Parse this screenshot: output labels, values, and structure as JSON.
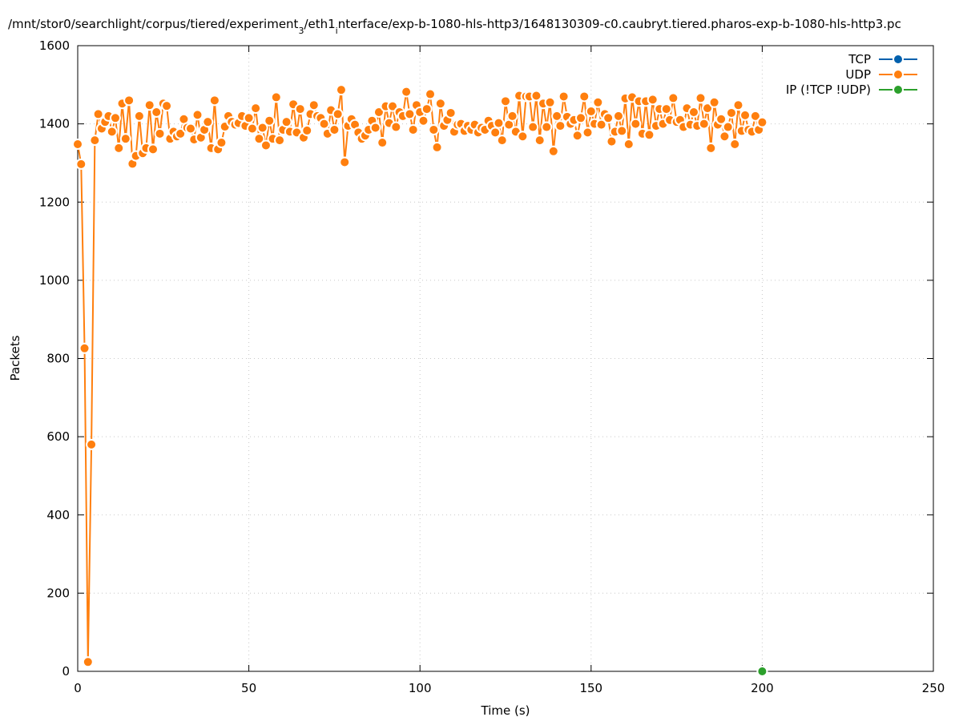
{
  "chart_data": {
    "type": "line",
    "title": [
      "/mnt/stor0/searchlight/corpus/tiered/experiment",
      "3",
      "/eth1",
      "i",
      "nterface/exp-b-1080-hls-http3/1648130309-c0.caubryt.tiered.pharos-exp-b-1080-hls-http3.pc"
    ],
    "x_label": "Time (s)",
    "y_label": "Packets",
    "xlim": [
      0,
      250
    ],
    "xticks": [
      0,
      50,
      100,
      150,
      200,
      250
    ],
    "ylim": [
      0,
      1600
    ],
    "yticks": [
      0,
      200,
      400,
      600,
      800,
      1000,
      1200,
      1400,
      1600
    ],
    "grid": true,
    "legend": "top-right",
    "series": [
      {
        "name": "TCP",
        "color": "#0060ad",
        "x": [
          200
        ],
        "values": [
          0
        ]
      },
      {
        "name": "UDP",
        "color": "#ff7f0e",
        "x": [
          0,
          1,
          2,
          3,
          4,
          5,
          6,
          7,
          8,
          9,
          10,
          11,
          12,
          13,
          14,
          15,
          16,
          17,
          18,
          19,
          20,
          21,
          22,
          23,
          24,
          25,
          26,
          27,
          28,
          29,
          30,
          31,
          32,
          33,
          34,
          35,
          36,
          37,
          38,
          39,
          40,
          41,
          42,
          43,
          44,
          45,
          46,
          47,
          48,
          49,
          50,
          51,
          52,
          53,
          54,
          55,
          56,
          57,
          58,
          59,
          60,
          61,
          62,
          63,
          64,
          65,
          66,
          67,
          68,
          69,
          70,
          71,
          72,
          73,
          74,
          75,
          76,
          77,
          78,
          79,
          80,
          81,
          82,
          83,
          84,
          85,
          86,
          87,
          88,
          89,
          90,
          91,
          92,
          93,
          94,
          95,
          96,
          97,
          98,
          99,
          100,
          101,
          102,
          103,
          104,
          105,
          106,
          107,
          108,
          109,
          110,
          111,
          112,
          113,
          114,
          115,
          116,
          117,
          118,
          119,
          120,
          121,
          122,
          123,
          124,
          125,
          126,
          127,
          128,
          129,
          130,
          131,
          132,
          133,
          134,
          135,
          136,
          137,
          138,
          139,
          140,
          141,
          142,
          143,
          144,
          145,
          146,
          147,
          148,
          149,
          150,
          151,
          152,
          153,
          154,
          155,
          156,
          157,
          158,
          159,
          160,
          161,
          162,
          163,
          164,
          165,
          166,
          167,
          168,
          169,
          170,
          171,
          172,
          173,
          174,
          175,
          176,
          177,
          178,
          179,
          180,
          181,
          182,
          183,
          184,
          185,
          186,
          187,
          188,
          189,
          190,
          191,
          192,
          193,
          194,
          195,
          196,
          197,
          198,
          199,
          200
        ],
        "values": [
          1348,
          1297,
          826,
          24,
          580,
          1358,
          1425,
          1388,
          1405,
          1420,
          1380,
          1415,
          1338,
          1452,
          1362,
          1460,
          1298,
          1318,
          1420,
          1325,
          1338,
          1448,
          1335,
          1430,
          1375,
          1452,
          1446,
          1362,
          1380,
          1368,
          1375,
          1412,
          1390,
          1388,
          1360,
          1423,
          1365,
          1385,
          1405,
          1338,
          1460,
          1335,
          1352,
          1393,
          1420,
          1405,
          1398,
          1402,
          1420,
          1395,
          1415,
          1388,
          1440,
          1362,
          1390,
          1345,
          1408,
          1362,
          1468,
          1358,
          1385,
          1405,
          1380,
          1450,
          1378,
          1438,
          1365,
          1383,
          1425,
          1448,
          1420,
          1415,
          1400,
          1375,
          1435,
          1385,
          1425,
          1487,
          1302,
          1395,
          1412,
          1398,
          1378,
          1362,
          1370,
          1385,
          1408,
          1390,
          1430,
          1352,
          1445,
          1402,
          1445,
          1392,
          1430,
          1420,
          1482,
          1425,
          1385,
          1448,
          1430,
          1408,
          1438,
          1476,
          1385,
          1340,
          1452,
          1395,
          1410,
          1428,
          1380,
          1398,
          1400,
          1382,
          1395,
          1385,
          1398,
          1378,
          1390,
          1385,
          1408,
          1395,
          1378,
          1402,
          1358,
          1458,
          1398,
          1420,
          1380,
          1472,
          1368,
          1470,
          1470,
          1392,
          1472,
          1358,
          1452,
          1392,
          1455,
          1330,
          1420,
          1395,
          1470,
          1418,
          1400,
          1410,
          1370,
          1415,
          1470,
          1378,
          1432,
          1400,
          1455,
          1398,
          1425,
          1415,
          1355,
          1380,
          1420,
          1382,
          1465,
          1348,
          1468,
          1400,
          1458,
          1375,
          1458,
          1372,
          1462,
          1395,
          1438,
          1400,
          1438,
          1410,
          1466,
          1405,
          1410,
          1392,
          1440,
          1398,
          1430,
          1395,
          1466,
          1400,
          1440,
          1338,
          1455,
          1398,
          1412,
          1368,
          1392,
          1428,
          1348,
          1448,
          1382,
          1422,
          1385,
          1380,
          1420,
          1385,
          1404
        ]
      },
      {
        "name": "IP (!TCP  !UDP)",
        "color": "#2ca02c",
        "x": [
          200
        ],
        "values": [
          0
        ]
      }
    ]
  }
}
